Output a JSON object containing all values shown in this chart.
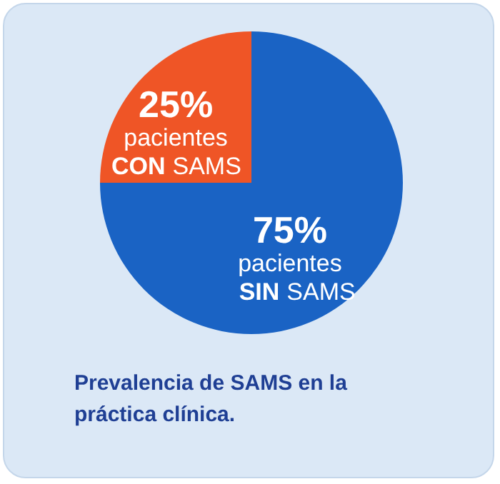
{
  "chart_data": {
    "type": "pie",
    "categories": [
      "pacientes CON SAMS",
      "pacientes SIN SAMS"
    ],
    "values": [
      25,
      75
    ],
    "colors": [
      "#ef5526",
      "#1a63c4"
    ],
    "value_labels": [
      "25%",
      "75%"
    ],
    "annotations": [
      "Prevalencia de SAMS en la práctica clínica."
    ]
  }
}
